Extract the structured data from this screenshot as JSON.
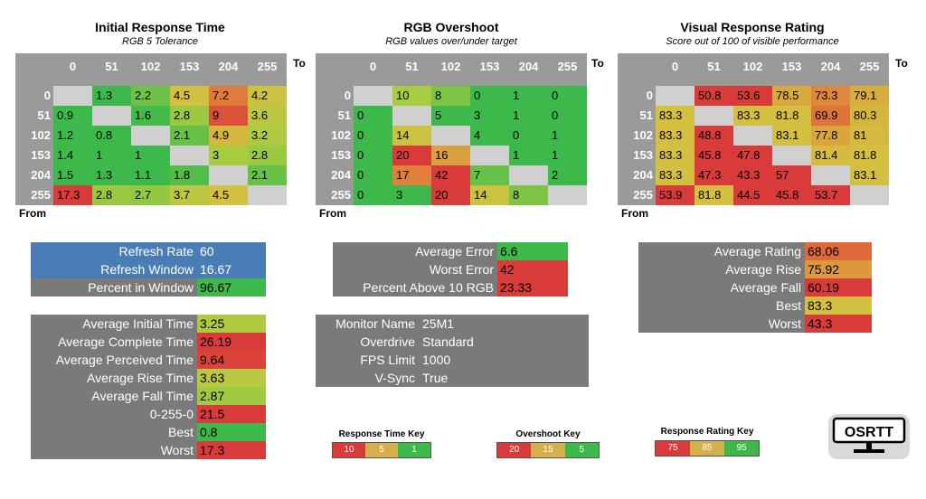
{
  "chart_data": [
    {
      "type": "heatmap",
      "title": "Initial Response Time",
      "subtitle": "RGB 5 Tolerance",
      "xlabel": "To",
      "ylabel": "From",
      "categories": [
        "0",
        "51",
        "102",
        "153",
        "204",
        "255"
      ],
      "values": [
        [
          null,
          "1.3",
          "2.2",
          "4.5",
          "7.2",
          "4.2"
        ],
        [
          "0.9",
          null,
          "1.6",
          "2.8",
          "9",
          "3.6"
        ],
        [
          "1.2",
          "0.8",
          null,
          "2.1",
          "4.9",
          "3.2"
        ],
        [
          "1.4",
          "1",
          "1",
          null,
          "3",
          "2.8"
        ],
        [
          "1.5",
          "1.3",
          "1.1",
          "1.8",
          null,
          "2.1"
        ],
        [
          "17.3",
          "2.8",
          "2.7",
          "3.7",
          "4.5",
          null
        ]
      ],
      "color_scale": "response_time"
    },
    {
      "type": "heatmap",
      "title": "RGB Overshoot",
      "subtitle": "RGB values over/under target",
      "xlabel": "To",
      "ylabel": "From",
      "categories": [
        "0",
        "51",
        "102",
        "153",
        "204",
        "255"
      ],
      "values": [
        [
          null,
          "10",
          "8",
          "0",
          "1",
          "0"
        ],
        [
          "0",
          null,
          "5",
          "3",
          "1",
          "0"
        ],
        [
          "0",
          "14",
          null,
          "4",
          "0",
          "1"
        ],
        [
          "0",
          "20",
          "16",
          null,
          "1",
          "1"
        ],
        [
          "0",
          "17",
          "42",
          "7",
          null,
          "2"
        ],
        [
          "0",
          "3",
          "20",
          "14",
          "8",
          null
        ]
      ],
      "color_scale": "overshoot"
    },
    {
      "type": "heatmap",
      "title": "Visual Response Rating",
      "subtitle": "Score out of 100 of visible performance",
      "xlabel": "To",
      "ylabel": "From",
      "categories": [
        "0",
        "51",
        "102",
        "153",
        "204",
        "255"
      ],
      "values": [
        [
          null,
          "50.8",
          "53.6",
          "78.5",
          "73.3",
          "79.1"
        ],
        [
          "83.3",
          null,
          "83.3",
          "81.8",
          "69.9",
          "80.3"
        ],
        [
          "83.3",
          "48.8",
          null,
          "83.1",
          "77.8",
          "81"
        ],
        [
          "83.3",
          "45.8",
          "47.8",
          null,
          "81.4",
          "81.8"
        ],
        [
          "83.3",
          "47.3",
          "43.3",
          "57",
          null,
          "83.1"
        ],
        [
          "53.9",
          "81.8",
          "44.5",
          "45.8",
          "53.7",
          null
        ]
      ],
      "color_scale": "rating"
    }
  ],
  "refresh": [
    {
      "label": "Refresh Rate",
      "value": "60"
    },
    {
      "label": "Refresh Window",
      "value": "16.67"
    },
    {
      "label": "Percent in Window",
      "value": "96.67"
    }
  ],
  "response_stats": [
    {
      "label": "Average Initial Time",
      "value": "3.25"
    },
    {
      "label": "Average Complete Time",
      "value": "26.19"
    },
    {
      "label": "Average Perceived Time",
      "value": "9.64"
    },
    {
      "label": "Average Rise Time",
      "value": "3.63"
    },
    {
      "label": "Average Fall Time",
      "value": "2.87"
    },
    {
      "label": "0-255-0",
      "value": "21.5"
    },
    {
      "label": "Best",
      "value": "0.8"
    },
    {
      "label": "Worst",
      "value": "17.3"
    }
  ],
  "overshoot_stats": [
    {
      "label": "Average Error",
      "value": "6.6"
    },
    {
      "label": "Worst Error",
      "value": "42"
    },
    {
      "label": "Percent Above 10 RGB",
      "value": "23.33"
    }
  ],
  "monitor_info": [
    {
      "label": "Monitor Name",
      "value": "25M1"
    },
    {
      "label": "Overdrive",
      "value": "Standard"
    },
    {
      "label": "FPS Limit",
      "value": "1000"
    },
    {
      "label": "V-Sync",
      "value": "True"
    }
  ],
  "rating_stats": [
    {
      "label": "Average Rating",
      "value": "68.06"
    },
    {
      "label": "Average Rise",
      "value": "75.92"
    },
    {
      "label": "Average Fall",
      "value": "60.19"
    },
    {
      "label": "Best",
      "value": "83.3"
    },
    {
      "label": "Worst",
      "value": "43.3"
    }
  ],
  "keys": [
    {
      "title": "Response Time Key",
      "cells": [
        "10",
        "5",
        "1"
      ],
      "colors": [
        "#d93a3a",
        "#d4b04c",
        "#3cb94a"
      ]
    },
    {
      "title": "Overshoot Key",
      "cells": [
        "20",
        "15",
        "5"
      ],
      "colors": [
        "#d93a3a",
        "#d4b04c",
        "#3cb94a"
      ]
    },
    {
      "title": "Response Rating Key",
      "cells": [
        "75",
        "85",
        "95"
      ],
      "colors": [
        "#d93a3a",
        "#d4b04c",
        "#3cb94a"
      ]
    }
  ],
  "logo": {
    "text": "OSRTT"
  },
  "colors": {
    "header_gray": "#9a9a9a",
    "stat_gray": "#7a7a7a",
    "diag_gray": "#d0d0d0",
    "refresh_blue": "#4a7db5",
    "red": "#d93a3a",
    "orange": "#e0803a",
    "yellow": "#d4c040",
    "green": "#3cb94a"
  }
}
